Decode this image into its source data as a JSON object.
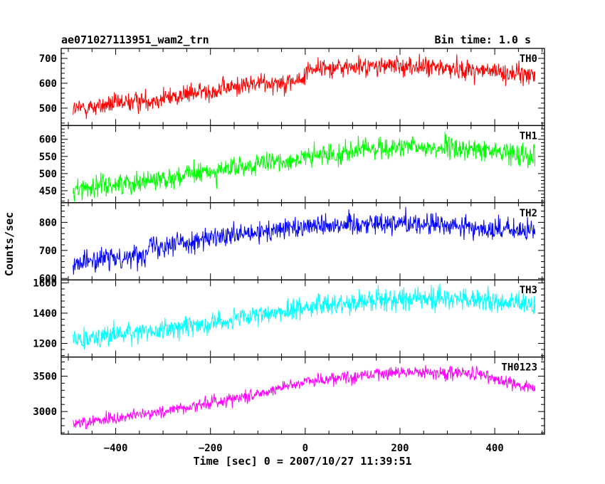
{
  "chart_data": {
    "type": "line",
    "title_left": "ae071027113951_wam2_trn",
    "title_right": "Bin time: 1.0 s",
    "xlabel": "Time [sec] 0 = 2007/10/27 11:39:51",
    "ylabel": "Counts/sec",
    "xlim": [
      -515,
      505
    ],
    "x_ticks": [
      -400,
      -200,
      0,
      200,
      400
    ],
    "x_tick_labels": [
      "−400",
      "−200",
      "0",
      "200",
      "400"
    ],
    "x_range": [
      -490,
      485
    ],
    "bin": 1.0,
    "grid": false,
    "panels": [
      {
        "name": "TH0",
        "color": "#ff0000",
        "ylim": [
          430,
          740
        ],
        "y_ticks": [
          500,
          600,
          700
        ],
        "y_tick_labels": [
          "500",
          "600",
          "700"
        ],
        "trend": [
          [
            -490,
            495
          ],
          [
            -300,
            540
          ],
          [
            -100,
            600
          ],
          [
            -5,
            610
          ],
          [
            5,
            660
          ],
          [
            200,
            670
          ],
          [
            350,
            655
          ],
          [
            485,
            630
          ]
        ],
        "noise": 28
      },
      {
        "name": "TH1",
        "color": "#00ff00",
        "ylim": [
          415,
          640
        ],
        "y_ticks": [
          450,
          500,
          550,
          600
        ],
        "y_tick_labels": [
          "450",
          "500",
          "550",
          "600"
        ],
        "trend": [
          [
            -490,
            455
          ],
          [
            -300,
            485
          ],
          [
            -100,
            525
          ],
          [
            0,
            545
          ],
          [
            150,
            575
          ],
          [
            300,
            575
          ],
          [
            485,
            555
          ]
        ],
        "noise": 22
      },
      {
        "name": "TH2",
        "color": "#0000ff",
        "ylim": [
          595,
          870
        ],
        "y_ticks": [
          600,
          700,
          800
        ],
        "y_tick_labels": [
          "600",
          "700",
          "800"
        ],
        "trend": [
          [
            -490,
            655
          ],
          [
            -340,
            685
          ],
          [
            -335,
            715
          ],
          [
            -100,
            760
          ],
          [
            0,
            790
          ],
          [
            200,
            800
          ],
          [
            485,
            765
          ]
        ],
        "noise": 28
      },
      {
        "name": "TH3",
        "color": "#00ffff",
        "ylim": [
          1110,
          1620
        ],
        "y_ticks": [
          1200,
          1400,
          1600
        ],
        "y_tick_labels": [
          "1200",
          "1400",
          "1600"
        ],
        "trend": [
          [
            -490,
            1230
          ],
          [
            -300,
            1290
          ],
          [
            -100,
            1380
          ],
          [
            0,
            1440
          ],
          [
            150,
            1490
          ],
          [
            300,
            1500
          ],
          [
            485,
            1450
          ]
        ],
        "noise": 50
      },
      {
        "name": "TH0123",
        "color": "#ff00ff",
        "ylim": [
          2680,
          3770
        ],
        "y_ticks": [
          3000,
          3500
        ],
        "y_tick_labels": [
          "3000",
          "3500"
        ],
        "trend": [
          [
            -490,
            2830
          ],
          [
            -300,
            3000
          ],
          [
            -100,
            3250
          ],
          [
            0,
            3430
          ],
          [
            200,
            3560
          ],
          [
            350,
            3540
          ],
          [
            485,
            3330
          ]
        ],
        "noise": 65
      }
    ]
  }
}
